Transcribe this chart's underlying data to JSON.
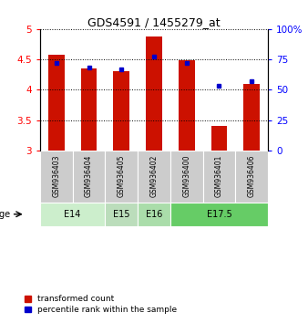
{
  "title": "GDS4591 / 1455279_at",
  "samples": [
    "GSM936403",
    "GSM936404",
    "GSM936405",
    "GSM936402",
    "GSM936400",
    "GSM936401",
    "GSM936406"
  ],
  "red_values": [
    4.58,
    4.35,
    4.3,
    4.88,
    4.48,
    3.4,
    4.1
  ],
  "blue_values": [
    72,
    68,
    67,
    77,
    72,
    53,
    57
  ],
  "ylim_left": [
    3,
    5
  ],
  "ylim_right": [
    0,
    100
  ],
  "yticks_left": [
    3,
    3.5,
    4,
    4.5,
    5
  ],
  "yticks_right": [
    0,
    25,
    50,
    75,
    100
  ],
  "ytick_labels_right": [
    "0",
    "25",
    "50",
    "75",
    "100%"
  ],
  "age_groups": [
    {
      "label": "E14",
      "samples": [
        "GSM936403",
        "GSM936404"
      ],
      "color": "#cceecc"
    },
    {
      "label": "E15",
      "samples": [
        "GSM936405"
      ],
      "color": "#bbddbb"
    },
    {
      "label": "E16",
      "samples": [
        "GSM936402"
      ],
      "color": "#aaddaa"
    },
    {
      "label": "E17.5",
      "samples": [
        "GSM936400",
        "GSM936401",
        "GSM936406"
      ],
      "color": "#66cc66"
    }
  ],
  "bar_color": "#cc1100",
  "dot_color": "#0000cc",
  "sample_bg_color": "#cccccc",
  "age_label": "age",
  "legend_red": "transformed count",
  "legend_blue": "percentile rank within the sample",
  "bar_width": 0.5
}
